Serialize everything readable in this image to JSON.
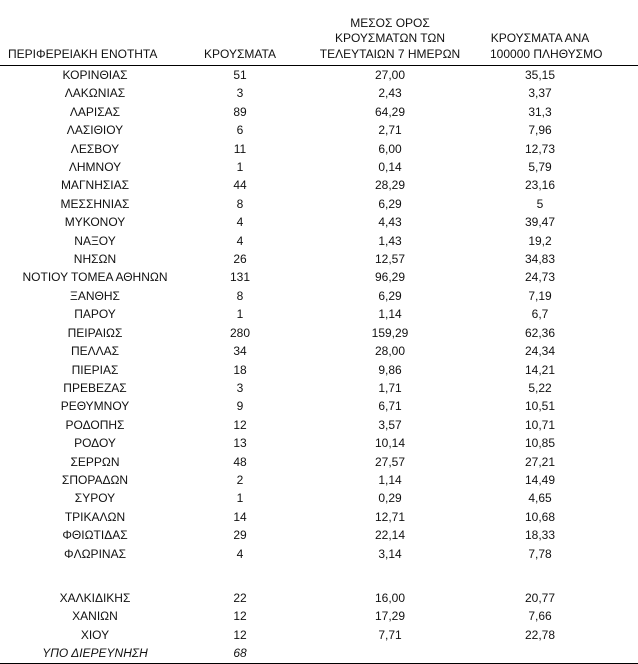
{
  "page": {
    "background_color": "#ffffff",
    "text_color": "#111111",
    "rule_color": "#000000"
  },
  "table": {
    "columns": [
      {
        "id": "region",
        "lines": [
          "ΠΕΡΙΦΕΡΕΙΑΚΗ ΕΝΟΤΗΤΑ"
        ]
      },
      {
        "id": "cases",
        "lines": [
          "ΚΡΟΥΣΜΑΤΑ"
        ]
      },
      {
        "id": "avg7",
        "lines": [
          "ΜΕΣΟΣ ΟΡΟΣ",
          "ΚΡΟΥΣΜΑΤΩΝ ΤΩΝ",
          "ΤΕΛΕΥΤΑΙΩΝ 7 ΗΜΕΡΩΝ"
        ]
      },
      {
        "id": "per100k",
        "lines": [
          "ΚΡΟΥΣΜΑΤΑ ΑΝΑ",
          "100000 ΠΛΗΘΥΣΜΟ"
        ]
      }
    ],
    "rows": [
      {
        "region": "ΚΟΡΙΝΘΙΑΣ",
        "cases": "51",
        "avg7": "27,00",
        "per100k": "35,15"
      },
      {
        "region": "ΛΑΚΩΝΙΑΣ",
        "cases": "3",
        "avg7": "2,43",
        "per100k": "3,37"
      },
      {
        "region": "ΛΑΡΙΣΑΣ",
        "cases": "89",
        "avg7": "64,29",
        "per100k": "31,3"
      },
      {
        "region": "ΛΑΣΙΘΙΟΥ",
        "cases": "6",
        "avg7": "2,71",
        "per100k": "7,96"
      },
      {
        "region": "ΛΕΣΒΟΥ",
        "cases": "11",
        "avg7": "6,00",
        "per100k": "12,73"
      },
      {
        "region": "ΛΗΜΝΟΥ",
        "cases": "1",
        "avg7": "0,14",
        "per100k": "5,79"
      },
      {
        "region": "ΜΑΓΝΗΣΙΑΣ",
        "cases": "44",
        "avg7": "28,29",
        "per100k": "23,16"
      },
      {
        "region": "ΜΕΣΣΗΝΙΑΣ",
        "cases": "8",
        "avg7": "6,29",
        "per100k": "5"
      },
      {
        "region": "ΜΥΚΟΝΟΥ",
        "cases": "4",
        "avg7": "4,43",
        "per100k": "39,47"
      },
      {
        "region": "ΝΑΞΟΥ",
        "cases": "4",
        "avg7": "1,43",
        "per100k": "19,2"
      },
      {
        "region": "ΝΗΣΩΝ",
        "cases": "26",
        "avg7": "12,57",
        "per100k": "34,83"
      },
      {
        "region": "ΝΟΤΙΟΥ ΤΟΜΕΑ ΑΘΗΝΩΝ",
        "cases": "131",
        "avg7": "96,29",
        "per100k": "24,73"
      },
      {
        "region": "ΞΑΝΘΗΣ",
        "cases": "8",
        "avg7": "6,29",
        "per100k": "7,19"
      },
      {
        "region": "ΠΑΡΟΥ",
        "cases": "1",
        "avg7": "1,14",
        "per100k": "6,7"
      },
      {
        "region": "ΠΕΙΡΑΙΩΣ",
        "cases": "280",
        "avg7": "159,29",
        "per100k": "62,36"
      },
      {
        "region": "ΠΕΛΛΑΣ",
        "cases": "34",
        "avg7": "28,00",
        "per100k": "24,34"
      },
      {
        "region": "ΠΙΕΡΙΑΣ",
        "cases": "18",
        "avg7": "9,86",
        "per100k": "14,21"
      },
      {
        "region": "ΠΡΕΒΕΖΑΣ",
        "cases": "3",
        "avg7": "1,71",
        "per100k": "5,22"
      },
      {
        "region": "ΡΕΘΥΜΝΟΥ",
        "cases": "9",
        "avg7": "6,71",
        "per100k": "10,51"
      },
      {
        "region": "ΡΟΔΟΠΗΣ",
        "cases": "12",
        "avg7": "3,57",
        "per100k": "10,71"
      },
      {
        "region": "ΡΟΔΟΥ",
        "cases": "13",
        "avg7": "10,14",
        "per100k": "10,85"
      },
      {
        "region": "ΣΕΡΡΩΝ",
        "cases": "48",
        "avg7": "27,57",
        "per100k": "27,21"
      },
      {
        "region": "ΣΠΟΡΑΔΩΝ",
        "cases": "2",
        "avg7": "1,14",
        "per100k": "14,49"
      },
      {
        "region": "ΣΥΡΟΥ",
        "cases": "1",
        "avg7": "0,29",
        "per100k": "4,65"
      },
      {
        "region": "ΤΡΙΚΑΛΩΝ",
        "cases": "14",
        "avg7": "12,71",
        "per100k": "10,68"
      },
      {
        "region": "ΦΘΙΩΤΙΔΑΣ",
        "cases": "29",
        "avg7": "22,14",
        "per100k": "18,33"
      },
      {
        "region": "ΦΛΩΡΙΝΑΣ",
        "cases": "4",
        "avg7": "3,14",
        "per100k": "7,78"
      },
      {
        "region": "",
        "cases": "",
        "avg7": "",
        "per100k": "",
        "spacer": true
      },
      {
        "region": "ΧΑΛΚΙΔΙΚΗΣ",
        "cases": "22",
        "avg7": "16,00",
        "per100k": "20,77"
      },
      {
        "region": "ΧΑΝΙΩΝ",
        "cases": "12",
        "avg7": "17,29",
        "per100k": "7,66"
      },
      {
        "region": "ΧΙΟΥ",
        "cases": "12",
        "avg7": "7,71",
        "per100k": "22,78"
      },
      {
        "region": "ΥΠΟ ΔΙΕΡΕΥΝΗΣΗ",
        "cases": "68",
        "avg7": "",
        "per100k": "",
        "italic": true
      }
    ]
  }
}
